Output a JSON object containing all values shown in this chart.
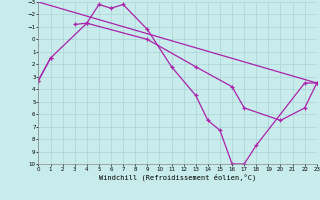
{
  "xlabel": "Windchill (Refroidissement éolien,°C)",
  "bg_color": "#c8ecec",
  "grid_color": "#aad4d4",
  "line_color": "#aa22aa",
  "xmin": 0,
  "xmax": 23,
  "ymin": -3,
  "ymax": 10,
  "series1_x": [
    0,
    1,
    3,
    4,
    5,
    6,
    7,
    9,
    11,
    13,
    14,
    15,
    16,
    17,
    18,
    22,
    23
  ],
  "series1_y": [
    3.3,
    1.5,
    -1.2,
    -1.3,
    -2.8,
    -2.5,
    -2.8,
    -0.8,
    2.2,
    4.5,
    6.5,
    7.3,
    10.0,
    10.0,
    8.5,
    3.5,
    3.5
  ],
  "series2_x": [
    0,
    1,
    4,
    9,
    13,
    16,
    17,
    20,
    22,
    23
  ],
  "series2_y": [
    3.3,
    1.5,
    -1.3,
    0.0,
    2.2,
    3.8,
    5.5,
    6.5,
    5.5,
    3.5
  ],
  "series3_x": [
    0,
    23
  ],
  "series3_y": [
    -3.0,
    3.5
  ],
  "yticks": [
    -3,
    -2,
    -1,
    0,
    1,
    2,
    3,
    4,
    5,
    6,
    7,
    8,
    9,
    10
  ],
  "xticks": [
    0,
    1,
    2,
    3,
    4,
    5,
    6,
    7,
    8,
    9,
    10,
    11,
    12,
    13,
    14,
    15,
    16,
    17,
    18,
    19,
    20,
    21,
    22,
    23
  ]
}
